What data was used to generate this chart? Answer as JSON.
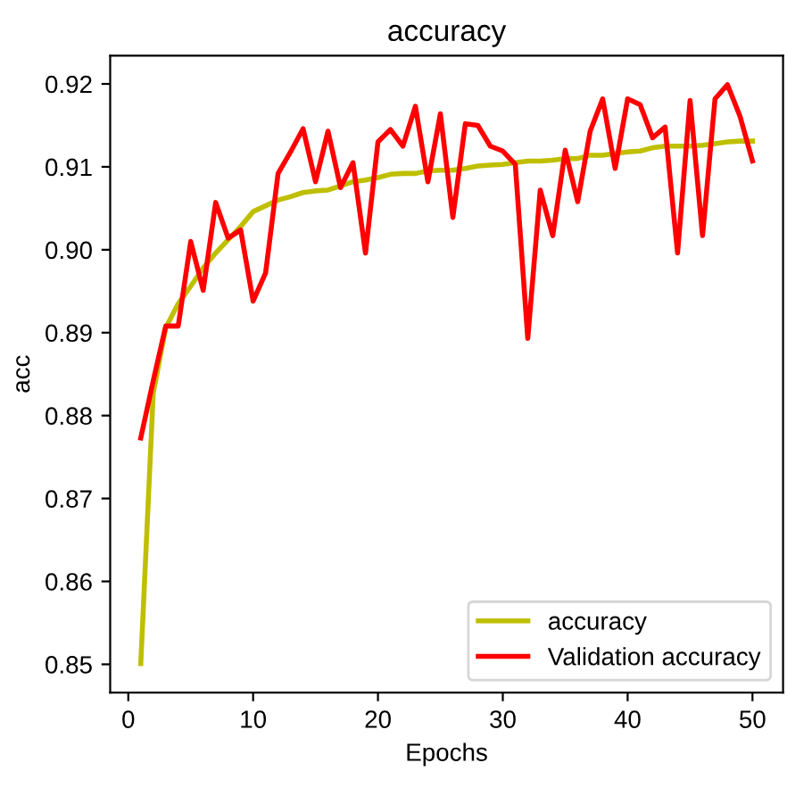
{
  "chart_data": {
    "type": "line",
    "title": "accuracy",
    "xlabel": "Epochs",
    "ylabel": "acc",
    "x": [
      1,
      2,
      3,
      4,
      5,
      6,
      7,
      8,
      9,
      10,
      11,
      12,
      13,
      14,
      15,
      16,
      17,
      18,
      19,
      20,
      21,
      22,
      23,
      24,
      25,
      26,
      27,
      28,
      29,
      30,
      31,
      32,
      33,
      34,
      35,
      36,
      37,
      38,
      39,
      40,
      41,
      42,
      43,
      44,
      45,
      46,
      47,
      48,
      49,
      50
    ],
    "series": [
      {
        "name": "accuracy",
        "color": "#bfbf00",
        "values": [
          0.8501,
          0.8827,
          0.8906,
          0.8935,
          0.8956,
          0.8978,
          0.8996,
          0.9012,
          0.9028,
          0.9046,
          0.9053,
          0.906,
          0.9064,
          0.9069,
          0.9071,
          0.9072,
          0.9077,
          0.9082,
          0.9084,
          0.9087,
          0.9091,
          0.9092,
          0.9092,
          0.9095,
          0.9096,
          0.9096,
          0.9098,
          0.9101,
          0.9102,
          0.9103,
          0.9105,
          0.9107,
          0.9107,
          0.9108,
          0.911,
          0.911,
          0.9114,
          0.9114,
          0.9116,
          0.9118,
          0.9119,
          0.9123,
          0.9125,
          0.9125,
          0.9125,
          0.9126,
          0.9128,
          0.913,
          0.9131,
          0.9131
        ]
      },
      {
        "name": "Validation accuracy",
        "color": "#ff0000",
        "values": [
          0.8773,
          0.8842,
          0.8908,
          0.8908,
          0.901,
          0.8951,
          0.9057,
          0.9014,
          0.9024,
          0.8938,
          0.8972,
          0.9092,
          0.9118,
          0.9146,
          0.9082,
          0.9143,
          0.9075,
          0.9105,
          0.8996,
          0.913,
          0.9145,
          0.9125,
          0.9173,
          0.9082,
          0.9164,
          0.9039,
          0.9152,
          0.915,
          0.9125,
          0.9119,
          0.9103,
          0.8893,
          0.9072,
          0.9017,
          0.912,
          0.9058,
          0.9143,
          0.9182,
          0.9098,
          0.9182,
          0.9175,
          0.9135,
          0.9148,
          0.8996,
          0.918,
          0.9017,
          0.9182,
          0.9199,
          0.9161,
          0.9107
        ]
      }
    ],
    "xlim": [
      -1.45,
      52.45
    ],
    "ylim": [
      0.8466,
      0.9234
    ],
    "xticks": [
      0,
      10,
      20,
      30,
      40,
      50
    ],
    "yticks": [
      {
        "value": 0.85,
        "label": "0.85"
      },
      {
        "value": 0.86,
        "label": "0.86"
      },
      {
        "value": 0.87,
        "label": "0.87"
      },
      {
        "value": 0.88,
        "label": "0.88"
      },
      {
        "value": 0.89,
        "label": "0.89"
      },
      {
        "value": 0.9,
        "label": "0.90"
      },
      {
        "value": 0.91,
        "label": "0.91"
      },
      {
        "value": 0.92,
        "label": "0.92"
      }
    ],
    "grid": false,
    "legend": "bottom right",
    "marker": "none",
    "line_style": "solid"
  }
}
